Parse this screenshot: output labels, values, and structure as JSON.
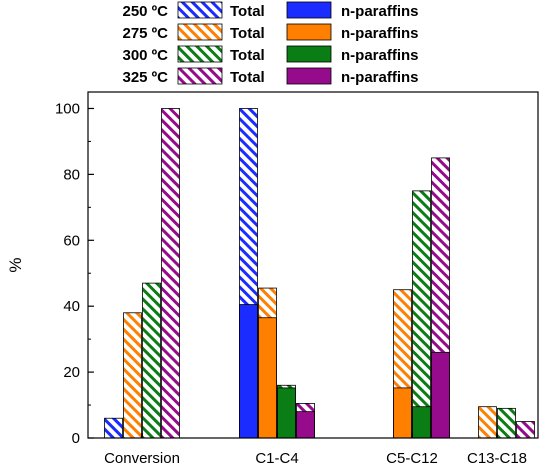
{
  "chart_data": {
    "type": "bar",
    "ylabel": "%",
    "ylim": [
      0,
      105
    ],
    "yticks": [
      0,
      20,
      40,
      60,
      80,
      100
    ],
    "grid": false,
    "legend_position": "top-left",
    "categories": [
      "Conversion",
      "C1-C4",
      "C5-C12",
      "C13-C18"
    ],
    "series": [
      {
        "temperature": "250 ºC",
        "color": "#1a2cff",
        "total_label": "Total",
        "paraffin_label": "n-paraffins",
        "total": [
          6,
          100,
          null,
          null
        ],
        "n_paraffins": [
          null,
          40.5,
          null,
          null
        ]
      },
      {
        "temperature": "275 ºC",
        "color": "#ff7f00",
        "total_label": "Total",
        "paraffin_label": "n-paraffins",
        "total": [
          38,
          45.5,
          45,
          9.5
        ],
        "n_paraffins": [
          null,
          36.5,
          15.2,
          null
        ]
      },
      {
        "temperature": "300 ºC",
        "color": "#0a7d14",
        "total_label": "Total",
        "paraffin_label": "n-paraffins",
        "total": [
          47,
          16,
          75,
          9
        ],
        "n_paraffins": [
          null,
          15.2,
          9.5,
          null
        ]
      },
      {
        "temperature": "325 ºC",
        "color": "#960a8c",
        "total_label": "Total",
        "paraffin_label": "n-paraffins",
        "total": [
          100,
          10.5,
          85,
          5
        ],
        "n_paraffins": [
          null,
          8,
          26,
          null
        ]
      }
    ]
  }
}
